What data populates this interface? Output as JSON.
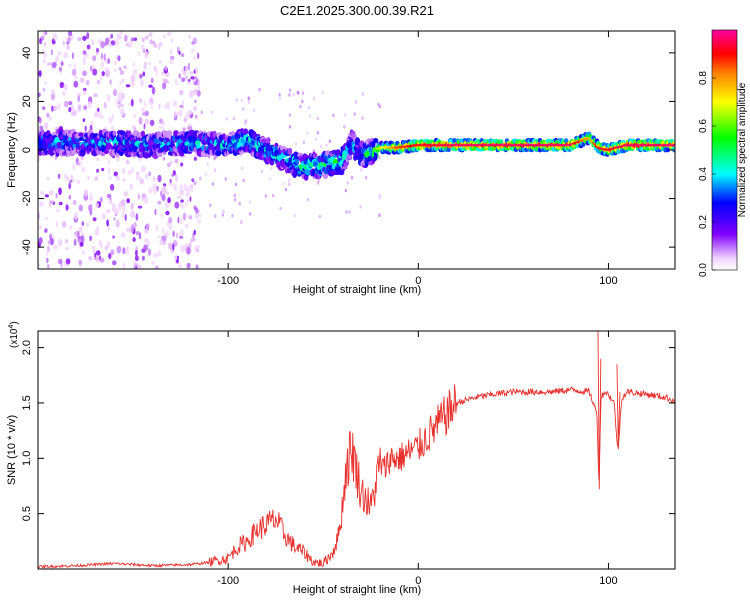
{
  "title": "C2E1.2025.300.00.39.R21",
  "chart_data": [
    {
      "type": "heatmap",
      "xlabel": "Height of straight line (km)",
      "ylabel": "Frequency (Hz)",
      "xlim": [
        -200,
        135
      ],
      "ylim": [
        -49,
        49
      ],
      "x_ticks": [
        -100,
        0,
        100
      ],
      "x_tick_labels": [
        "-100",
        "0",
        "100"
      ],
      "y_ticks": [
        -40,
        -20,
        0,
        20,
        40
      ],
      "y_tick_labels": [
        "-40",
        "-20",
        "0",
        "20",
        "40"
      ],
      "colorbar": {
        "label": "Normalized spectral amplitude",
        "range": [
          0,
          1
        ],
        "ticks": [
          0.0,
          0.2,
          0.4,
          0.6,
          0.8
        ],
        "tick_labels": [
          "0.0",
          "0.2",
          "0.4",
          "0.6",
          "0.8"
        ]
      },
      "ridge": {
        "x": [
          -200,
          -180,
          -160,
          -140,
          -120,
          -100,
          -90,
          -80,
          -70,
          -60,
          -50,
          -40,
          -35,
          -30,
          -25,
          -20,
          -10,
          0,
          20,
          40,
          60,
          80,
          90,
          95,
          100,
          110,
          120,
          135
        ],
        "freq": [
          3,
          3,
          3,
          2,
          3,
          2,
          4,
          0,
          -4,
          -7,
          -6,
          -5,
          3,
          -2,
          -1,
          1,
          1,
          2,
          2,
          2,
          2,
          2,
          5,
          1,
          0,
          2,
          2,
          2
        ],
        "amplitude": [
          0.35,
          0.3,
          0.35,
          0.3,
          0.35,
          0.35,
          0.45,
          0.4,
          0.4,
          0.45,
          0.45,
          0.45,
          0.3,
          0.35,
          0.55,
          0.65,
          0.85,
          0.9,
          0.95,
          0.95,
          0.95,
          0.95,
          0.75,
          0.9,
          0.9,
          0.95,
          0.95,
          0.95
        ]
      }
    },
    {
      "type": "line",
      "xlabel": "Height of straight line (km)",
      "ylabel": "SNR (10 * v/v)",
      "y_scale_label": "(x10",
      "y_scale_exponent": "4",
      "y_scale_suffix": ")",
      "xlim": [
        -200,
        135
      ],
      "ylim": [
        0,
        2.15
      ],
      "x_ticks": [
        -100,
        0,
        100
      ],
      "x_tick_labels": [
        "-100",
        "0",
        "100"
      ],
      "y_ticks": [
        0.5,
        1.0,
        1.5,
        2.0
      ],
      "y_tick_labels": [
        "0.5",
        "1.0",
        "1.5",
        "2.0"
      ],
      "color": "#e8302c",
      "series": [
        {
          "name": "SNR",
          "x": [
            -200,
            -180,
            -160,
            -140,
            -120,
            -110,
            -100,
            -95,
            -90,
            -85,
            -80,
            -75,
            -70,
            -65,
            -60,
            -55,
            -50,
            -45,
            -42,
            -40,
            -38,
            -35,
            -32,
            -30,
            -28,
            -25,
            -22,
            -20,
            -18,
            -15,
            -10,
            -5,
            0,
            5,
            10,
            15,
            20,
            30,
            40,
            50,
            60,
            70,
            80,
            90,
            94,
            95,
            96,
            98,
            100,
            103,
            105,
            107,
            110,
            120,
            130,
            135
          ],
          "y": [
            0.02,
            0.03,
            0.05,
            0.03,
            0.04,
            0.06,
            0.1,
            0.2,
            0.25,
            0.35,
            0.4,
            0.45,
            0.3,
            0.2,
            0.15,
            0.06,
            0.05,
            0.15,
            0.3,
            0.55,
            0.9,
            1.1,
            0.85,
            0.7,
            0.65,
            0.55,
            0.8,
            0.95,
            0.9,
            1.0,
            1.0,
            1.05,
            1.1,
            1.2,
            1.3,
            1.4,
            1.5,
            1.55,
            1.58,
            1.6,
            1.6,
            1.6,
            1.62,
            1.6,
            1.4,
            0.75,
            1.55,
            1.6,
            1.58,
            1.5,
            1.05,
            1.55,
            1.6,
            1.58,
            1.55,
            1.52
          ]
        }
      ]
    }
  ]
}
